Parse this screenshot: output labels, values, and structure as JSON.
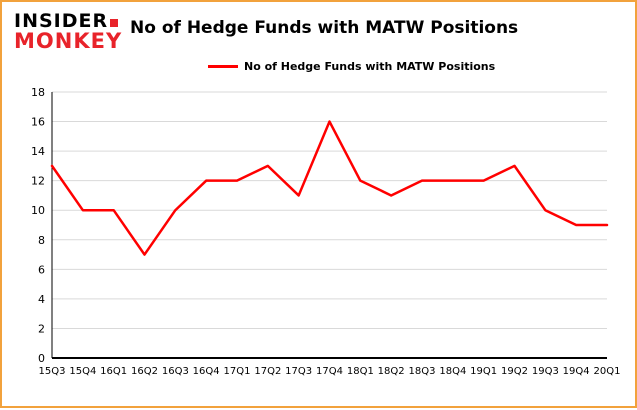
{
  "logo": {
    "line1": "INSIDER",
    "line2": "MONKEY"
  },
  "header": {
    "title": "No of Hedge Funds with MATW Positions"
  },
  "legend": {
    "label": "No of Hedge Funds with MATW Positions"
  },
  "colors": {
    "line": "#ff0000",
    "border": "#f2a23c",
    "grid": "#d9d9d9",
    "axis": "#000000",
    "logo_red": "#e8232a"
  },
  "chart_data": {
    "type": "line",
    "title": "No of Hedge Funds with MATW Positions",
    "legend": [
      "No of Hedge Funds with MATW Positions"
    ],
    "categories": [
      "15Q3",
      "15Q4",
      "16Q1",
      "16Q2",
      "16Q3",
      "16Q4",
      "17Q1",
      "17Q2",
      "17Q3",
      "17Q4",
      "18Q1",
      "18Q2",
      "18Q3",
      "18Q4",
      "19Q1",
      "19Q2",
      "19Q3",
      "19Q4",
      "20Q1"
    ],
    "values": [
      13,
      10,
      10,
      7,
      10,
      12,
      12,
      13,
      11,
      16,
      12,
      11,
      12,
      12,
      12,
      13,
      10,
      9,
      9
    ],
    "xlabel": "",
    "ylabel": "",
    "ylim": [
      0,
      18
    ],
    "ytick_step": 2,
    "grid": true,
    "legend_position": "top"
  }
}
